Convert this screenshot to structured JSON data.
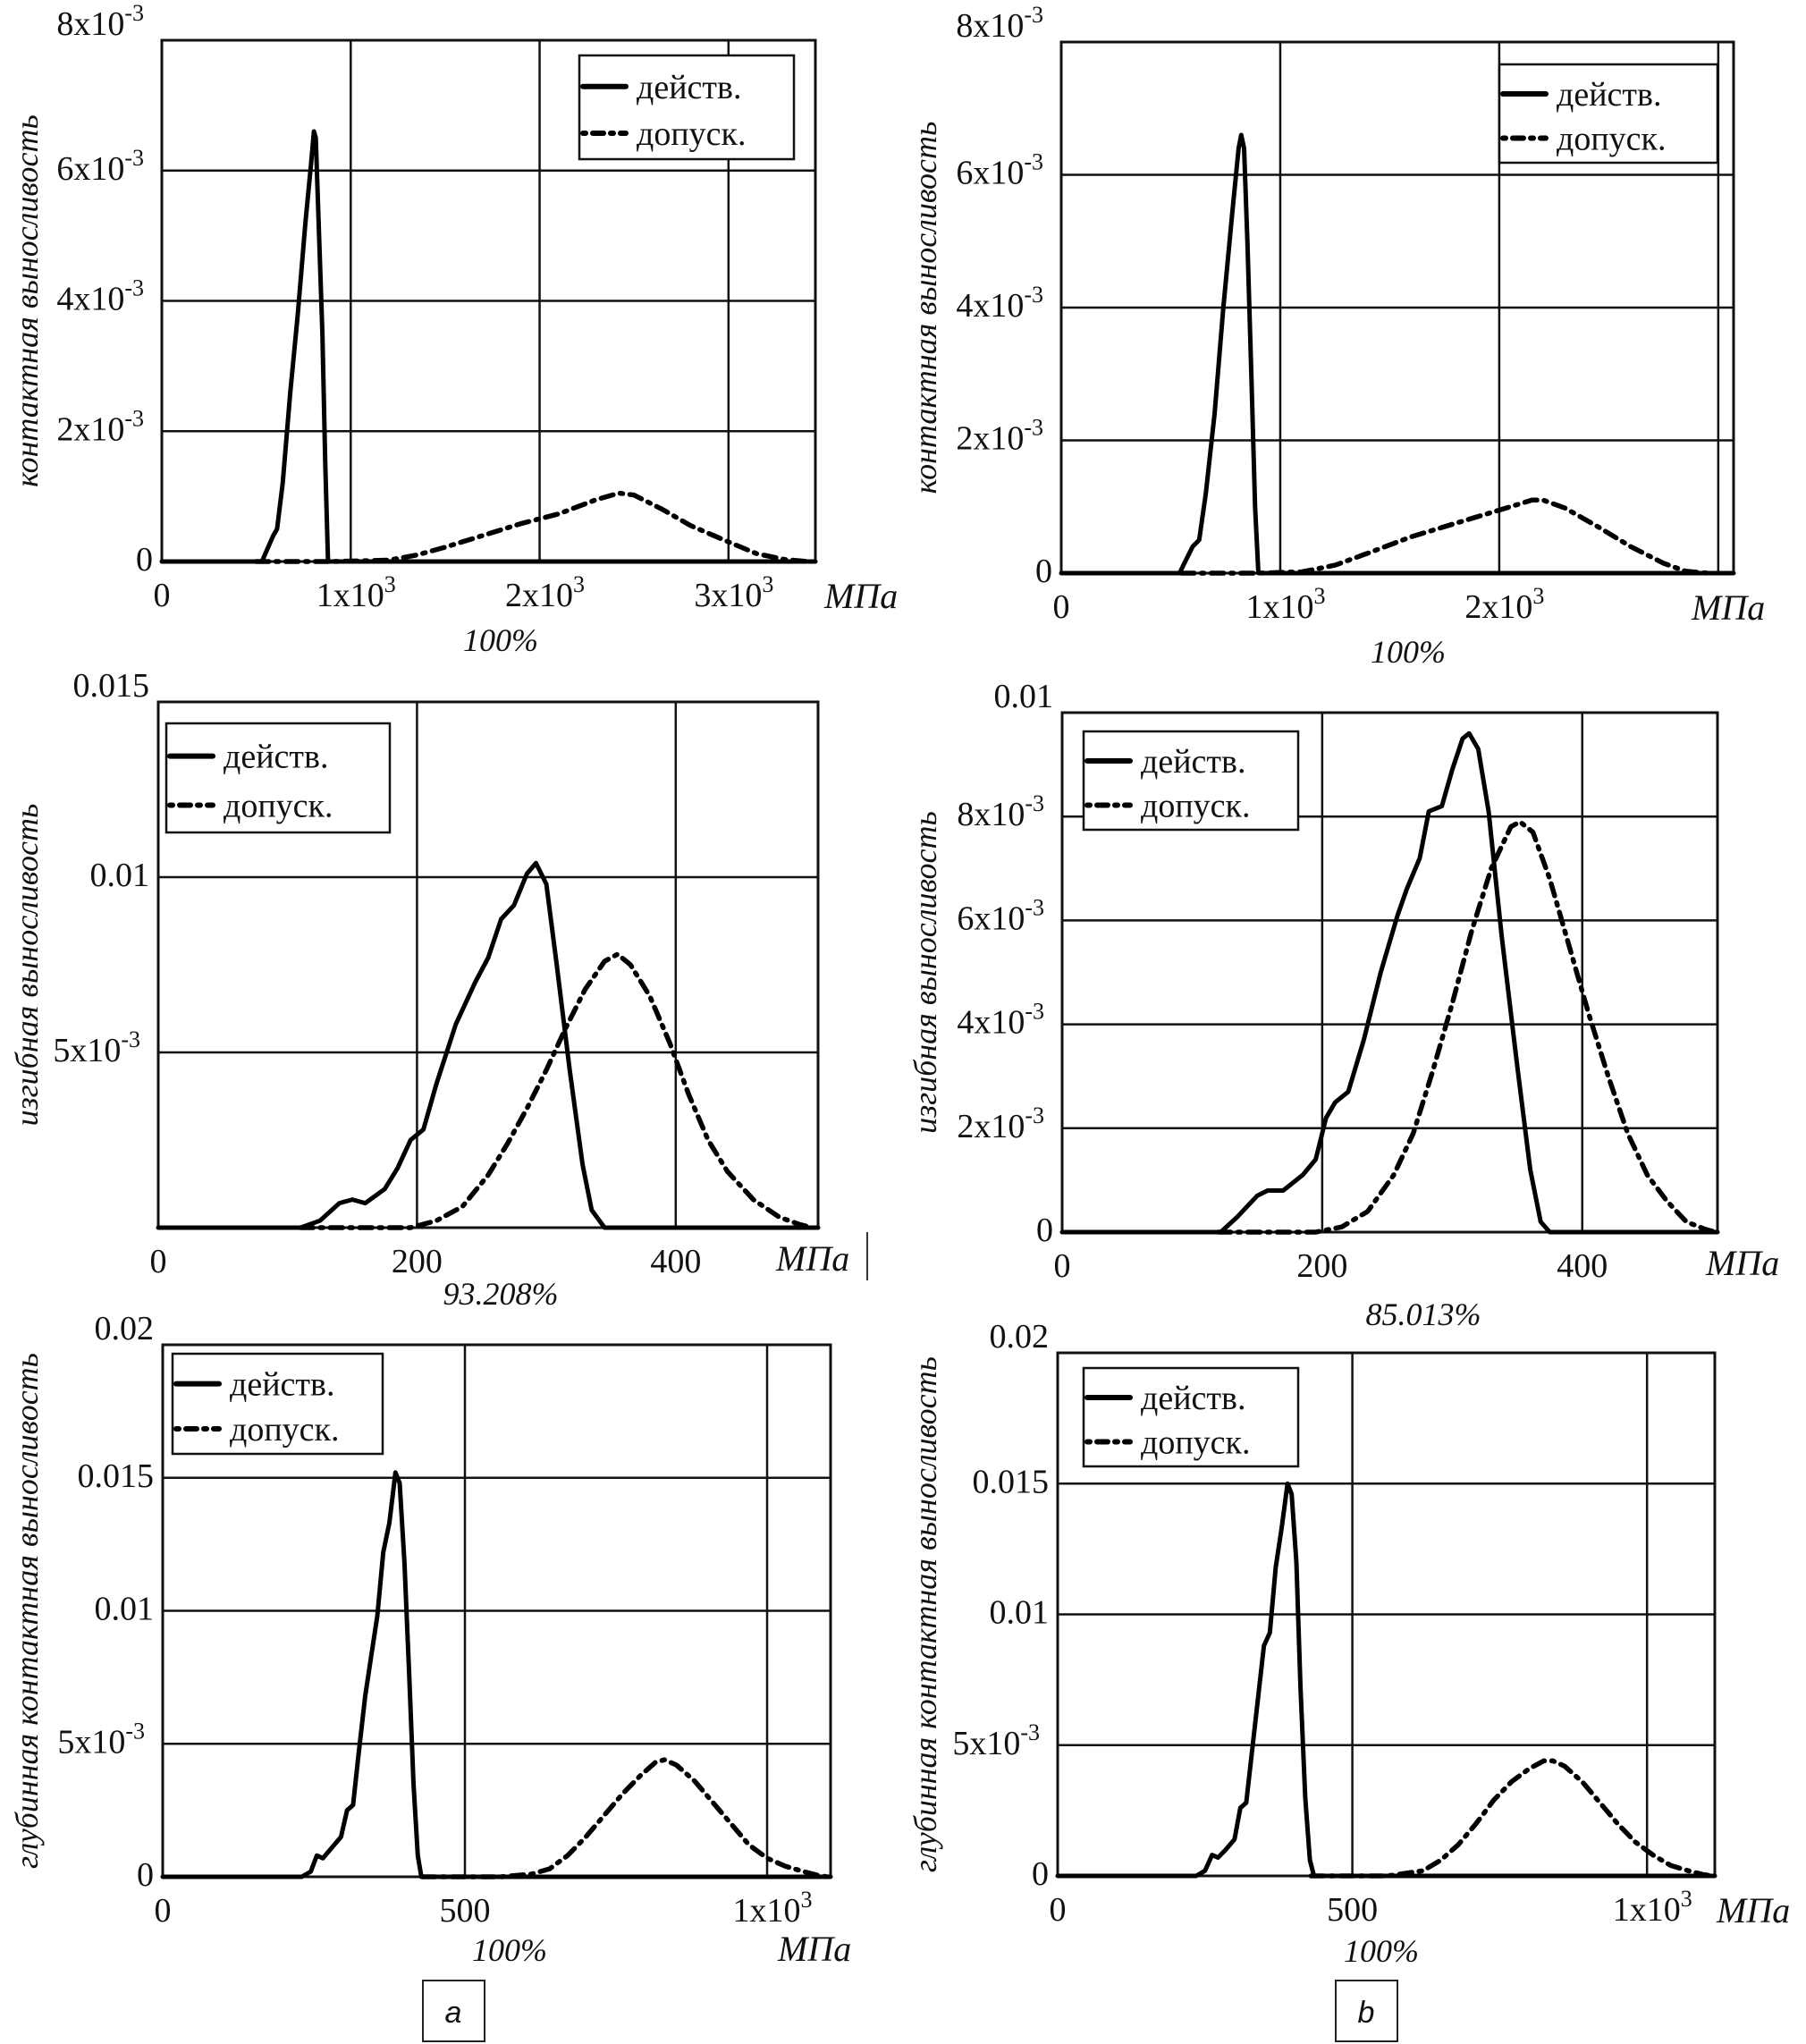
{
  "panel_labels": [
    "a",
    "b"
  ],
  "chart_data": [
    {
      "id": "contact-a",
      "type": "line",
      "column": "a",
      "row": 1,
      "ylabel": "контактная выносливость",
      "xunit": "МПа",
      "probability": "100%",
      "xlim": [
        0,
        3460
      ],
      "ylim": [
        0,
        0.008
      ],
      "xticks": [
        {
          "v": 0,
          "t": "0"
        },
        {
          "v": 1000,
          "t": "1x10",
          "sup": "3"
        },
        {
          "v": 2000,
          "t": "2x10",
          "sup": "3"
        },
        {
          "v": 3000,
          "t": "3x10",
          "sup": "3"
        }
      ],
      "yticks": [
        {
          "v": 0,
          "t": "0"
        },
        {
          "v": 0.002,
          "t": "2x10",
          "sup": "-3"
        },
        {
          "v": 0.004,
          "t": "4x10",
          "sup": "-3"
        },
        {
          "v": 0.006,
          "t": "6x10",
          "sup": "-3"
        },
        {
          "v": 0.008,
          "t": "8x10",
          "sup": "-3"
        }
      ],
      "grid": true,
      "legend": {
        "position": "top-right",
        "entries": [
          "действ.",
          "допуск."
        ]
      },
      "series": [
        {
          "name": "действ.",
          "style": "solid",
          "x": [
            0,
            530,
            560,
            590,
            610,
            640,
            680,
            720,
            760,
            790,
            805,
            815,
            830,
            850,
            865,
            880,
            3460
          ],
          "y": [
            0,
            0,
            0.0002,
            0.0004,
            0.0005,
            0.0012,
            0.0026,
            0.0038,
            0.0052,
            0.0061,
            0.0066,
            0.0065,
            0.0052,
            0.0035,
            0.0015,
            0,
            0
          ]
        },
        {
          "name": "допуск.",
          "style": "dashdot",
          "x": [
            500,
            900,
            1200,
            1350,
            1500,
            1700,
            1900,
            2100,
            2300,
            2420,
            2500,
            2650,
            2800,
            3000,
            3150,
            3300,
            3420
          ],
          "y": [
            0,
            0,
            2e-05,
            0.0001,
            0.00022,
            0.0004,
            0.00058,
            0.00073,
            0.00095,
            0.00105,
            0.00102,
            0.0008,
            0.00055,
            0.0003,
            0.00012,
            3e-05,
            0
          ]
        }
      ]
    },
    {
      "id": "contact-b",
      "type": "line",
      "column": "b",
      "row": 1,
      "ylabel": "контактная выносливость",
      "xunit": "МПа",
      "probability": "100%",
      "xlim": [
        0,
        3070
      ],
      "ylim": [
        0,
        0.008
      ],
      "xticks": [
        {
          "v": 0,
          "t": "0"
        },
        {
          "v": 1000,
          "t": "1x10",
          "sup": "3"
        },
        {
          "v": 2000,
          "t": "2x10",
          "sup": "3"
        }
      ],
      "xgrid_extra": [
        3000
      ],
      "yticks": [
        {
          "v": 0,
          "t": "0"
        },
        {
          "v": 0.002,
          "t": "2x10",
          "sup": "-3"
        },
        {
          "v": 0.004,
          "t": "4x10",
          "sup": "-3"
        },
        {
          "v": 0.006,
          "t": "6x10",
          "sup": "-3"
        },
        {
          "v": 0.008,
          "t": "8x10",
          "sup": "-3"
        }
      ],
      "grid": true,
      "legend": {
        "position": "top-right",
        "entries": [
          "действ.",
          "допуск."
        ]
      },
      "series": [
        {
          "name": "действ.",
          "style": "solid",
          "x": [
            0,
            540,
            570,
            600,
            630,
            660,
            700,
            740,
            780,
            810,
            822,
            835,
            850,
            868,
            885,
            900,
            3070
          ],
          "y": [
            0,
            0,
            0.0002,
            0.0004,
            0.0005,
            0.0012,
            0.0024,
            0.004,
            0.0054,
            0.0064,
            0.0066,
            0.0064,
            0.005,
            0.003,
            0.001,
            0,
            0
          ]
        },
        {
          "name": "допуск.",
          "style": "dashdot",
          "x": [
            550,
            900,
            1100,
            1250,
            1400,
            1600,
            1800,
            2000,
            2150,
            2200,
            2300,
            2450,
            2600,
            2750,
            2850,
            2950
          ],
          "y": [
            0,
            0,
            2e-05,
            0.00012,
            0.0003,
            0.00055,
            0.00075,
            0.00095,
            0.0011,
            0.0011,
            0.00098,
            0.0007,
            0.0004,
            0.00015,
            3e-05,
            0
          ]
        }
      ]
    },
    {
      "id": "bending-a",
      "type": "line",
      "column": "a",
      "row": 2,
      "ylabel": "изгибная выносливость",
      "xunit": "МПа",
      "probability": "93.208%",
      "xlim": [
        0,
        510
      ],
      "ylim": [
        0,
        0.015
      ],
      "xticks": [
        {
          "v": 0,
          "t": "0"
        },
        {
          "v": 200,
          "t": "200"
        },
        {
          "v": 400,
          "t": "400"
        }
      ],
      "yticks": [
        {
          "v": 0.005,
          "t": "5x10",
          "sup": "-3"
        },
        {
          "v": 0.01,
          "t": "0.01"
        },
        {
          "v": 0.015,
          "t": "0.015"
        }
      ],
      "grid": true,
      "legend": {
        "position": "top-left",
        "entries": [
          "действ.",
          "допуск."
        ]
      },
      "series": [
        {
          "name": "действ.",
          "style": "solid",
          "x": [
            0,
            110,
            125,
            140,
            150,
            160,
            175,
            185,
            195,
            205,
            215,
            230,
            245,
            255,
            265,
            275,
            285,
            292,
            300,
            308,
            318,
            328,
            335,
            345,
            510
          ],
          "y": [
            0,
            0,
            0.0002,
            0.0007,
            0.0008,
            0.0007,
            0.0011,
            0.0017,
            0.0025,
            0.0028,
            0.0041,
            0.0058,
            0.007,
            0.0077,
            0.0088,
            0.0092,
            0.0101,
            0.0104,
            0.0098,
            0.0075,
            0.0045,
            0.0018,
            0.0005,
            0,
            0
          ]
        },
        {
          "name": "допуск.",
          "style": "dashdot",
          "x": [
            110,
            195,
            215,
            235,
            255,
            270,
            285,
            300,
            315,
            330,
            345,
            355,
            365,
            380,
            395,
            410,
            425,
            440,
            460,
            480,
            495,
            505
          ],
          "y": [
            0,
            0,
            0.0002,
            0.0006,
            0.0015,
            0.0024,
            0.0034,
            0.0045,
            0.0057,
            0.0068,
            0.0076,
            0.0078,
            0.0075,
            0.0066,
            0.0053,
            0.0038,
            0.0025,
            0.0016,
            0.0008,
            0.0003,
            0.0001,
            0
          ]
        }
      ]
    },
    {
      "id": "bending-b",
      "type": "line",
      "column": "b",
      "row": 2,
      "ylabel": "изгибная выносливость",
      "xunit": "МПа",
      "probability": "85.013%",
      "xlim": [
        0,
        504
      ],
      "ylim": [
        0,
        0.01
      ],
      "xticks": [
        {
          "v": 0,
          "t": "0"
        },
        {
          "v": 200,
          "t": "200"
        },
        {
          "v": 400,
          "t": "400"
        }
      ],
      "yticks": [
        {
          "v": 0,
          "t": "0"
        },
        {
          "v": 0.002,
          "t": "2x10",
          "sup": "-3"
        },
        {
          "v": 0.004,
          "t": "4x10",
          "sup": "-3"
        },
        {
          "v": 0.006,
          "t": "6x10",
          "sup": "-3"
        },
        {
          "v": 0.008,
          "t": "8x10",
          "sup": "-3"
        },
        {
          "v": 0.01,
          "t": "0.01"
        }
      ],
      "grid": true,
      "legend": {
        "position": "top-left",
        "entries": [
          "действ.",
          "допуск."
        ]
      },
      "series": [
        {
          "name": "действ.",
          "style": "solid",
          "x": [
            0,
            122,
            135,
            150,
            158,
            170,
            185,
            195,
            203,
            210,
            220,
            232,
            245,
            258,
            265,
            275,
            282,
            292,
            300,
            308,
            313,
            320,
            328,
            338,
            350,
            360,
            368,
            375,
            504
          ],
          "y": [
            0,
            0,
            0.0003,
            0.0007,
            0.0008,
            0.0008,
            0.0011,
            0.0014,
            0.0022,
            0.0025,
            0.0027,
            0.0037,
            0.005,
            0.0061,
            0.0066,
            0.0072,
            0.0081,
            0.0082,
            0.0089,
            0.0095,
            0.0096,
            0.0093,
            0.0081,
            0.0057,
            0.0032,
            0.0012,
            0.0002,
            0,
            0
          ]
        },
        {
          "name": "допуск.",
          "style": "dashdot",
          "x": [
            120,
            195,
            215,
            235,
            255,
            270,
            285,
            300,
            315,
            330,
            345,
            352,
            362,
            375,
            390,
            405,
            420,
            435,
            450,
            465,
            480,
            495,
            503
          ],
          "y": [
            0,
            0,
            0.0001,
            0.0004,
            0.0011,
            0.0019,
            0.0031,
            0.0044,
            0.0058,
            0.007,
            0.0078,
            0.0079,
            0.0077,
            0.0068,
            0.0055,
            0.0042,
            0.003,
            0.0019,
            0.0011,
            0.0006,
            0.0002,
            5e-05,
            0
          ]
        }
      ]
    },
    {
      "id": "deep-contact-a",
      "type": "line",
      "column": "a",
      "row": 3,
      "ylabel": "глубинная контактная выносливость",
      "xunit": "МПа",
      "probability": "100%",
      "xlim": [
        0,
        1105
      ],
      "ylim": [
        0,
        0.02
      ],
      "xticks": [
        {
          "v": 0,
          "t": "0"
        },
        {
          "v": 500,
          "t": "500"
        },
        {
          "v": 1000,
          "t": "1x10",
          "sup": "3"
        }
      ],
      "yticks": [
        {
          "v": 0,
          "t": "0"
        },
        {
          "v": 0.005,
          "t": "5x10",
          "sup": "-3"
        },
        {
          "v": 0.01,
          "t": "0.01"
        },
        {
          "v": 0.015,
          "t": "0.015"
        },
        {
          "v": 0.02,
          "t": "0.02"
        }
      ],
      "grid": true,
      "legend": {
        "position": "top-left",
        "entries": [
          "действ.",
          "допуск."
        ]
      },
      "series": [
        {
          "name": "действ.",
          "style": "solid",
          "x": [
            0,
            230,
            245,
            255,
            265,
            280,
            295,
            305,
            315,
            325,
            335,
            345,
            355,
            365,
            375,
            385,
            392,
            400,
            408,
            415,
            422,
            428,
            1105
          ],
          "y": [
            0,
            0,
            0.0002,
            0.0008,
            0.0007,
            0.0011,
            0.0015,
            0.0025,
            0.0027,
            0.0048,
            0.0068,
            0.0083,
            0.0098,
            0.0122,
            0.0133,
            0.0152,
            0.0148,
            0.0118,
            0.0075,
            0.0035,
            0.0008,
            0,
            0
          ]
        },
        {
          "name": "допуск.",
          "style": "dashdot",
          "x": [
            430,
            560,
            610,
            640,
            670,
            700,
            730,
            760,
            790,
            815,
            830,
            850,
            880,
            910,
            940,
            970,
            1000,
            1030,
            1060,
            1085,
            1100
          ],
          "y": [
            0,
            0,
            0.0001,
            0.0003,
            0.0008,
            0.0015,
            0.0023,
            0.0031,
            0.0038,
            0.0043,
            0.0044,
            0.0042,
            0.0036,
            0.0028,
            0.002,
            0.0012,
            0.0007,
            0.0004,
            0.0002,
            5e-05,
            0
          ]
        }
      ]
    },
    {
      "id": "deep-contact-b",
      "type": "line",
      "column": "b",
      "row": 3,
      "ylabel": "глубинная контактная выносливость",
      "xunit": "МПа",
      "probability": "100%",
      "xlim": [
        0,
        1115
      ],
      "ylim": [
        0,
        0.02
      ],
      "xticks": [
        {
          "v": 0,
          "t": "0"
        },
        {
          "v": 500,
          "t": "500"
        },
        {
          "v": 1000,
          "t": "1x10",
          "sup": "3"
        }
      ],
      "yticks": [
        {
          "v": 0,
          "t": "0"
        },
        {
          "v": 0.005,
          "t": "5x10",
          "sup": "-3"
        },
        {
          "v": 0.01,
          "t": "0.01"
        },
        {
          "v": 0.015,
          "t": "0.015"
        },
        {
          "v": 0.02,
          "t": "0.02"
        }
      ],
      "grid": true,
      "legend": {
        "position": "top-left",
        "entries": [
          "действ.",
          "допуск."
        ]
      },
      "series": [
        {
          "name": "действ.",
          "style": "solid",
          "x": [
            0,
            235,
            250,
            262,
            272,
            285,
            300,
            310,
            320,
            330,
            340,
            350,
            360,
            370,
            380,
            390,
            397,
            405,
            412,
            420,
            428,
            435,
            1115
          ],
          "y": [
            0,
            0,
            0.0002,
            0.0008,
            0.0007,
            0.001,
            0.0014,
            0.0026,
            0.0028,
            0.0048,
            0.0068,
            0.0088,
            0.0093,
            0.0118,
            0.0133,
            0.015,
            0.0146,
            0.012,
            0.0072,
            0.003,
            0.0006,
            0,
            0
          ]
        },
        {
          "name": "допуск.",
          "style": "dashdot",
          "x": [
            430,
            560,
            620,
            650,
            680,
            710,
            740,
            770,
            800,
            825,
            840,
            860,
            890,
            920,
            950,
            980,
            1010,
            1040,
            1070,
            1095,
            1110
          ],
          "y": [
            0,
            0,
            0.0002,
            0.0006,
            0.0012,
            0.002,
            0.0029,
            0.0036,
            0.0041,
            0.0044,
            0.0044,
            0.0042,
            0.0036,
            0.0028,
            0.002,
            0.0013,
            0.0008,
            0.0004,
            0.0002,
            5e-05,
            0
          ]
        }
      ]
    }
  ]
}
